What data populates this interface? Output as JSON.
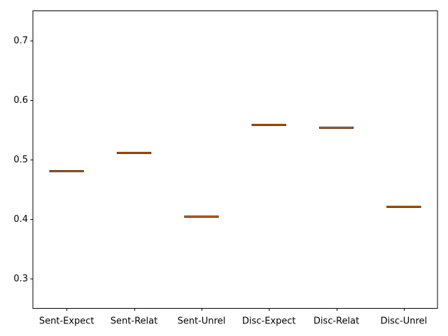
{
  "chart_data": {
    "type": "box",
    "categories": [
      "Sent-Expect",
      "Sent-Relat",
      "Sent-Unrel",
      "Disc-Expect",
      "Disc-Relat",
      "Disc-Unrel"
    ],
    "values": [
      0.481,
      0.512,
      0.405,
      0.559,
      0.554,
      0.421
    ],
    "title": "",
    "xlabel": "",
    "ylabel": "",
    "ylim": [
      0.25,
      0.75
    ],
    "yticks": [
      0.3,
      0.4,
      0.5,
      0.6,
      0.7
    ],
    "ytick_labels": [
      "0.3",
      "0.4",
      "0.5",
      "0.6",
      "0.7"
    ],
    "grid": false,
    "colors": {
      "box": "#000000",
      "median": "#ff7f0e",
      "axes": "#000000"
    }
  }
}
